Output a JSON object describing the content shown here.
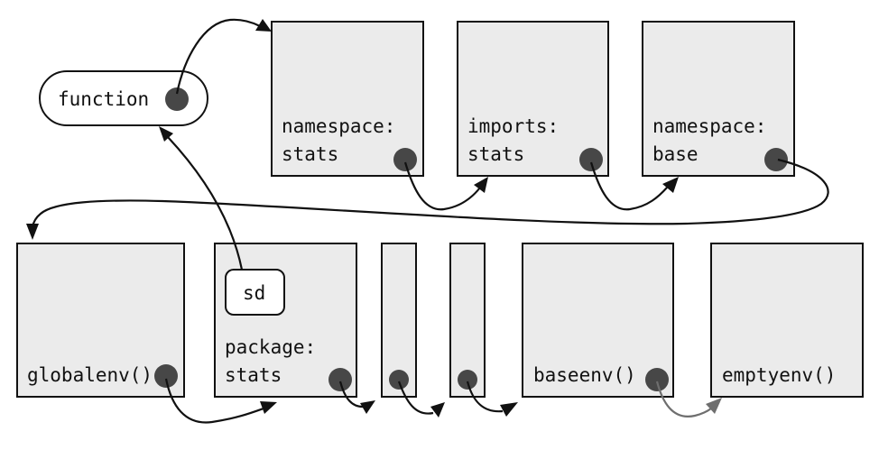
{
  "function_label": "function",
  "binding_label": "sd",
  "namespace_stats": {
    "line1": "namespace:",
    "line2": "stats"
  },
  "imports_stats": {
    "line1": "imports:",
    "line2": "stats"
  },
  "namespace_base": {
    "line1": "namespace:",
    "line2": "base"
  },
  "globalenv_label": "globalenv()",
  "package_stats": {
    "line1": "package:",
    "line2": "stats"
  },
  "baseenv_label": "baseenv()",
  "emptyenv_label": "emptyenv()",
  "colors": {
    "box_fill": "#ebebeb",
    "dot": "#474747",
    "stroke": "#111111",
    "grey_arrow": "#6e6e6e"
  }
}
